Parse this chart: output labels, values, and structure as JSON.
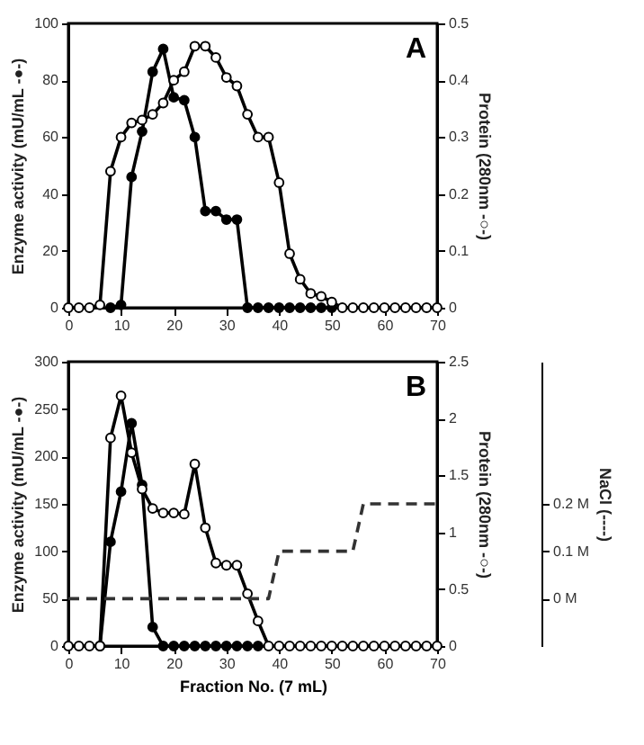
{
  "chart_data": [
    {
      "type": "line",
      "title": "A",
      "ylabel": "Enzyme activity (mU/mL -●-)",
      "y2label": "Protein (280nm -○-)",
      "xlim": [
        0,
        70
      ],
      "xticks": [
        0,
        10,
        20,
        30,
        40,
        50,
        60,
        70
      ],
      "ylim": [
        0,
        100
      ],
      "yticks": [
        0,
        20,
        40,
        60,
        80,
        100
      ],
      "y2lim": [
        0,
        0.5
      ],
      "y2ticks": [
        0,
        0.1,
        0.2,
        0.3,
        0.4,
        0.5
      ],
      "marker": "circle",
      "series": [
        {
          "color": "#000000",
          "x": [
            8,
            10,
            12,
            14,
            16,
            18,
            20,
            22,
            24,
            26,
            28,
            30,
            32,
            34,
            36,
            38,
            40,
            42,
            44,
            46,
            48,
            50
          ],
          "values": [
            0,
            1,
            46,
            62,
            83,
            91,
            74,
            73,
            60,
            34,
            34,
            31,
            31,
            0,
            0,
            0,
            0,
            0,
            0,
            0,
            0,
            0
          ]
        },
        {
          "color": "#000000",
          "axis": "y2",
          "x": [
            0,
            2,
            4,
            6,
            8,
            10,
            12,
            14,
            16,
            18,
            20,
            22,
            24,
            26,
            28,
            30,
            32,
            34,
            36,
            38,
            40,
            42,
            44,
            46,
            48,
            50,
            52,
            54,
            56,
            58,
            60,
            62,
            64,
            66,
            68,
            70
          ],
          "values": [
            0,
            0,
            0,
            0.005,
            0.24,
            0.3,
            0.325,
            0.33,
            0.34,
            0.36,
            0.4,
            0.415,
            0.46,
            0.46,
            0.44,
            0.405,
            0.39,
            0.34,
            0.3,
            0.3,
            0.22,
            0.095,
            0.05,
            0.025,
            0.02,
            0.01,
            0,
            0,
            0,
            0,
            0,
            0,
            0,
            0,
            0,
            0
          ]
        }
      ]
    },
    {
      "type": "line",
      "title": "B",
      "xlabel": "Fraction No. (7 mL)",
      "ylabel": "Enzyme activity (mU/mL -●-)",
      "y2label": "Protein (280nm -○-)",
      "y3label": "NaCl (----)",
      "xlim": [
        0,
        70
      ],
      "xticks": [
        0,
        10,
        20,
        30,
        40,
        50,
        60,
        70
      ],
      "ylim": [
        0,
        300
      ],
      "yticks": [
        0,
        50,
        100,
        150,
        200,
        250,
        300
      ],
      "y2lim": [
        0,
        2.5
      ],
      "y2ticks": [
        0,
        0.5,
        1,
        1.5,
        2,
        2.5
      ],
      "y3lim": [
        -0.1,
        0.5
      ],
      "y3ticks": [
        {
          "value": 0,
          "label": "0 M"
        },
        {
          "value": 0.1,
          "label": "0.1 M"
        },
        {
          "value": 0.2,
          "label": "0.2 M"
        }
      ],
      "marker": "circle",
      "series": [
        {
          "color": "#000000",
          "x": [
            6,
            8,
            10,
            12,
            14,
            16,
            18,
            20,
            22,
            24,
            26,
            28,
            30,
            32,
            34,
            36
          ],
          "values": [
            0,
            110,
            163,
            235,
            170,
            20,
            0,
            0,
            0,
            0,
            0,
            0,
            0,
            0,
            0,
            0
          ]
        },
        {
          "color": "#000000",
          "axis": "y2",
          "x": [
            0,
            2,
            4,
            6,
            8,
            10,
            12,
            14,
            16,
            18,
            20,
            22,
            24,
            26,
            28,
            30,
            32,
            34,
            36,
            38,
            40,
            42,
            44,
            46,
            48,
            50,
            52,
            54,
            56,
            58,
            60,
            62,
            64,
            66,
            68,
            70
          ],
          "values": [
            0,
            0,
            0,
            0,
            1.83,
            2.2,
            1.7,
            1.38,
            1.21,
            1.17,
            1.17,
            1.16,
            1.6,
            1.04,
            0.73,
            0.71,
            0.71,
            0.46,
            0.22,
            0,
            0,
            0,
            0,
            0,
            0,
            0,
            0,
            0,
            0,
            0,
            0,
            0,
            0,
            0,
            0,
            0
          ]
        },
        {
          "color": "#333333",
          "axis": "y3",
          "marker": "none",
          "line_style": "dashed",
          "x": [
            0,
            38,
            40,
            54,
            56,
            70
          ],
          "values": [
            0,
            0,
            0.1,
            0.1,
            0.2,
            0.2
          ]
        }
      ]
    }
  ]
}
